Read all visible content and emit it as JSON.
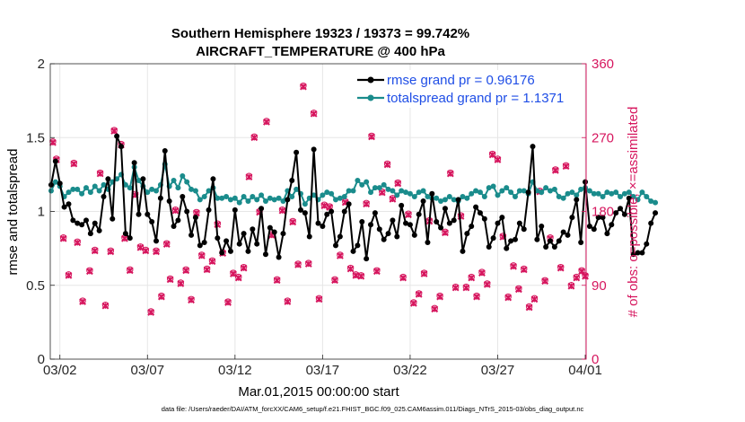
{
  "chart_data": {
    "type": "line",
    "title_line1": "Southern Hemisphere 19323 / 19373 = 99.742%",
    "title_line2": "AIRCRAFT_TEMPERATURE @ 400 hPa",
    "xlabel": "Mar.01,2015 00:00:00 start",
    "ylabel_left": "rmse and totalspread",
    "ylabel_right": "# of obs: o=possible; ×=assimilated",
    "x_tick_labels": [
      "03/02",
      "03/07",
      "03/12",
      "03/17",
      "03/22",
      "03/27",
      "04/01"
    ],
    "x_tick_days": [
      1,
      6,
      11,
      16,
      21,
      26,
      31
    ],
    "xlim_days": [
      0.45,
      31.05
    ],
    "ylim_left": [
      0,
      2
    ],
    "y_ticks_left": [
      "0",
      "0.5",
      "1",
      "1.5",
      "2"
    ],
    "y_tick_values_left": [
      0,
      0.5,
      1,
      1.5,
      2
    ],
    "ylim_right": [
      0,
      360
    ],
    "y_ticks_right": [
      "0",
      "90",
      "180",
      "270",
      "360"
    ],
    "y_tick_values_right": [
      0,
      90,
      180,
      270,
      360
    ],
    "legend": [
      {
        "label": "rmse grand pr = 0.96176",
        "color": "#000000"
      },
      {
        "label": "totalspread grand pr = 1.1371",
        "color": "#1a8c8c"
      }
    ],
    "series": [
      {
        "name": "rmse",
        "axis": "left",
        "color": "#000000",
        "values": [
          1.18,
          1.34,
          1.19,
          1.03,
          1.05,
          0.94,
          0.92,
          0.91,
          0.94,
          0.85,
          0.92,
          0.87,
          1.1,
          1.22,
          0.95,
          1.51,
          1.44,
          0.85,
          0.82,
          1.33,
          0.98,
          1.22,
          0.98,
          0.93,
          0.8,
          1.09,
          1.41,
          1.07,
          0.9,
          0.94,
          1.1,
          1.0,
          0.84,
          0.96,
          0.77,
          0.79,
          1.01,
          1.22,
          0.82,
          0.72,
          0.8,
          0.73,
          1.01,
          0.78,
          0.85,
          0.73,
          0.88,
          0.78,
          1.02,
          0.71,
          0.89,
          0.86,
          0.69,
          0.85,
          1.08,
          1.21,
          1.4,
          1.01,
          0.99,
          0.83,
          1.42,
          0.92,
          0.9,
          0.98,
          1.0,
          0.77,
          0.83,
          1.0,
          1.05,
          0.73,
          0.77,
          0.93,
          0.68,
          0.91,
          0.99,
          0.88,
          0.81,
          0.85,
          0.94,
          0.83,
          1.04,
          0.92,
          0.91,
          0.84,
          0.98,
          1.07,
          0.79,
          1.12,
          0.93,
          0.89,
          1.02,
          0.92,
          0.94,
          1.08,
          0.73,
          0.85,
          0.9,
          1.03,
          0.99,
          0.95,
          0.76,
          0.82,
          0.92,
          0.96,
          0.75,
          0.8,
          0.81,
          0.92,
          0.88,
          1.13,
          1.44,
          0.81,
          0.9,
          0.76,
          0.8,
          0.76,
          0.8,
          0.86,
          0.84,
          0.96,
          1.08,
          0.79,
          1.2,
          0.9,
          0.88,
          0.96,
          0.96,
          0.85,
          0.91,
          0.99,
          1.02,
          0.98,
          1.09,
          0.71,
          0.72,
          0.72,
          0.78,
          0.92,
          0.99
        ],
        "x_start_day": 0.5,
        "x_step_days": 0.25
      },
      {
        "name": "totalspread",
        "axis": "left",
        "color": "#1a8c8c",
        "values": [
          1.14,
          1.2,
          1.17,
          1.1,
          1.13,
          1.15,
          1.15,
          1.12,
          1.16,
          1.13,
          1.17,
          1.14,
          1.18,
          1.15,
          1.2,
          1.22,
          1.25,
          1.18,
          1.16,
          1.3,
          1.21,
          1.17,
          1.13,
          1.15,
          1.14,
          1.18,
          1.32,
          1.17,
          1.21,
          1.16,
          1.24,
          1.2,
          1.15,
          1.14,
          1.08,
          1.1,
          1.14,
          1.16,
          1.09,
          1.09,
          1.1,
          1.08,
          1.09,
          1.06,
          1.1,
          1.07,
          1.1,
          1.08,
          1.11,
          1.07,
          1.09,
          1.08,
          1.09,
          1.07,
          1.14,
          1.1,
          1.15,
          1.12,
          1.05,
          1.09,
          1.11,
          1.08,
          1.11,
          1.13,
          1.12,
          1.08,
          1.09,
          1.1,
          1.14,
          1.14,
          1.21,
          1.18,
          1.2,
          1.13,
          1.16,
          1.16,
          1.18,
          1.15,
          1.14,
          1.11,
          1.14,
          1.13,
          1.12,
          1.1,
          1.13,
          1.14,
          1.1,
          1.09,
          1.09,
          1.07,
          1.08,
          1.1,
          1.08,
          1.07,
          1.1,
          1.09,
          1.12,
          1.14,
          1.13,
          1.1,
          1.16,
          1.17,
          1.11,
          1.14,
          1.16,
          1.13,
          1.1,
          1.14,
          1.14,
          1.12,
          1.2,
          1.14,
          1.13,
          1.16,
          1.14,
          1.15,
          1.1,
          1.09,
          1.12,
          1.13,
          1.11,
          1.15,
          1.16,
          1.14,
          1.12,
          1.12,
          1.1,
          1.13,
          1.12,
          1.13,
          1.1,
          1.12,
          1.13,
          1.1,
          1.08,
          1.13,
          1.1,
          1.07,
          1.06
        ],
        "x_start_day": 0.5,
        "x_step_days": 0.25
      },
      {
        "name": "obs_possible",
        "axis": "right",
        "color": "#d6165e",
        "marker": "o",
        "points": [
          [
            0.6,
            265
          ],
          [
            0.8,
            244
          ],
          [
            1.2,
            148
          ],
          [
            1.5,
            103
          ],
          [
            1.8,
            239
          ],
          [
            2.0,
            143
          ],
          [
            2.3,
            71
          ],
          [
            2.7,
            108
          ],
          [
            3.0,
            133
          ],
          [
            3.3,
            227
          ],
          [
            3.6,
            66
          ],
          [
            3.9,
            132
          ],
          [
            4.1,
            279
          ],
          [
            4.5,
            262
          ],
          [
            4.7,
            148
          ],
          [
            5.0,
            109
          ],
          [
            5.3,
            201
          ],
          [
            5.6,
            137
          ],
          [
            5.9,
            133
          ],
          [
            6.2,
            58
          ],
          [
            6.5,
            132
          ],
          [
            6.8,
            77
          ],
          [
            7.1,
            141
          ],
          [
            7.3,
            98
          ],
          [
            7.6,
            182
          ],
          [
            7.9,
            93
          ],
          [
            8.2,
            109
          ],
          [
            8.5,
            73
          ],
          [
            8.8,
            179
          ],
          [
            9.1,
            127
          ],
          [
            9.4,
            110
          ],
          [
            9.7,
            120
          ],
          [
            10.0,
            165
          ],
          [
            10.3,
            130
          ],
          [
            10.6,
            70
          ],
          [
            10.9,
            105
          ],
          [
            11.2,
            100
          ],
          [
            11.5,
            112
          ],
          [
            11.8,
            223
          ],
          [
            12.1,
            271
          ],
          [
            12.4,
            180
          ],
          [
            12.8,
            290
          ],
          [
            13.1,
            152
          ],
          [
            13.4,
            97
          ],
          [
            13.7,
            182
          ],
          [
            14.0,
            71
          ],
          [
            14.3,
            168
          ],
          [
            14.6,
            116
          ],
          [
            14.9,
            333
          ],
          [
            15.2,
            117
          ],
          [
            15.5,
            300
          ],
          [
            15.8,
            74
          ],
          [
            16.1,
            188
          ],
          [
            16.4,
            186
          ],
          [
            16.7,
            97
          ],
          [
            17.0,
            127
          ],
          [
            17.3,
            192
          ],
          [
            17.6,
            111
          ],
          [
            17.9,
            103
          ],
          [
            18.2,
            102
          ],
          [
            18.5,
            190
          ],
          [
            18.8,
            272
          ],
          [
            19.1,
            108
          ],
          [
            19.4,
            204
          ],
          [
            19.7,
            238
          ],
          [
            20.0,
            196
          ],
          [
            20.3,
            215
          ],
          [
            20.6,
            100
          ],
          [
            20.9,
            177
          ],
          [
            21.2,
            69
          ],
          [
            21.5,
            80
          ],
          [
            21.8,
            105
          ],
          [
            22.1,
            169
          ],
          [
            22.4,
            62
          ],
          [
            22.7,
            77
          ],
          [
            23.0,
            155
          ],
          [
            23.3,
            227
          ],
          [
            23.6,
            88
          ],
          [
            23.9,
            175
          ],
          [
            24.2,
            88
          ],
          [
            24.5,
            100
          ],
          [
            24.8,
            77
          ],
          [
            25.1,
            106
          ],
          [
            25.4,
            92
          ],
          [
            25.7,
            250
          ],
          [
            26.0,
            244
          ],
          [
            26.3,
            150
          ],
          [
            26.6,
            76
          ],
          [
            26.9,
            114
          ],
          [
            27.2,
            86
          ],
          [
            27.5,
            110
          ],
          [
            27.8,
            64
          ],
          [
            28.1,
            74
          ],
          [
            28.4,
            205
          ],
          [
            28.7,
            96
          ],
          [
            29.0,
            148
          ],
          [
            29.3,
            231
          ],
          [
            29.6,
            112
          ],
          [
            29.9,
            236
          ],
          [
            30.2,
            90
          ],
          [
            30.5,
            100
          ],
          [
            30.8,
            108
          ],
          [
            31.0,
            102
          ]
        ]
      },
      {
        "name": "obs_assimilated",
        "axis": "right",
        "color": "#d6165e",
        "marker": "x",
        "points": [
          [
            0.6,
            264
          ],
          [
            0.8,
            243
          ],
          [
            1.2,
            147
          ],
          [
            1.5,
            102
          ],
          [
            1.8,
            238
          ],
          [
            2.0,
            142
          ],
          [
            2.3,
            70
          ],
          [
            2.7,
            107
          ],
          [
            3.0,
            132
          ],
          [
            3.3,
            226
          ],
          [
            3.6,
            65
          ],
          [
            3.9,
            131
          ],
          [
            4.1,
            278
          ],
          [
            4.5,
            261
          ],
          [
            4.7,
            147
          ],
          [
            5.0,
            108
          ],
          [
            5.3,
            200
          ],
          [
            5.6,
            136
          ],
          [
            5.9,
            132
          ],
          [
            6.2,
            57
          ],
          [
            6.5,
            131
          ],
          [
            6.8,
            76
          ],
          [
            7.1,
            140
          ],
          [
            7.3,
            97
          ],
          [
            7.6,
            181
          ],
          [
            7.9,
            92
          ],
          [
            8.2,
            108
          ],
          [
            8.5,
            72
          ],
          [
            8.8,
            178
          ],
          [
            9.1,
            126
          ],
          [
            9.4,
            109
          ],
          [
            9.7,
            119
          ],
          [
            10.0,
            164
          ],
          [
            10.3,
            129
          ],
          [
            10.6,
            69
          ],
          [
            10.9,
            104
          ],
          [
            11.2,
            99
          ],
          [
            11.5,
            111
          ],
          [
            11.8,
            222
          ],
          [
            12.1,
            270
          ],
          [
            12.4,
            179
          ],
          [
            12.8,
            289
          ],
          [
            13.1,
            151
          ],
          [
            13.4,
            96
          ],
          [
            13.7,
            181
          ],
          [
            14.0,
            70
          ],
          [
            14.3,
            167
          ],
          [
            14.6,
            115
          ],
          [
            14.9,
            332
          ],
          [
            15.2,
            116
          ],
          [
            15.5,
            299
          ],
          [
            15.8,
            73
          ],
          [
            16.1,
            187
          ],
          [
            16.4,
            185
          ],
          [
            16.7,
            96
          ],
          [
            17.0,
            126
          ],
          [
            17.3,
            191
          ],
          [
            17.6,
            110
          ],
          [
            17.9,
            102
          ],
          [
            18.2,
            101
          ],
          [
            18.5,
            189
          ],
          [
            18.8,
            271
          ],
          [
            19.1,
            107
          ],
          [
            19.4,
            203
          ],
          [
            19.7,
            237
          ],
          [
            20.0,
            195
          ],
          [
            20.3,
            214
          ],
          [
            20.6,
            99
          ],
          [
            20.9,
            176
          ],
          [
            21.2,
            68
          ],
          [
            21.5,
            79
          ],
          [
            21.8,
            104
          ],
          [
            22.1,
            168
          ],
          [
            22.4,
            61
          ],
          [
            22.7,
            76
          ],
          [
            23.0,
            154
          ],
          [
            23.3,
            226
          ],
          [
            23.6,
            87
          ],
          [
            23.9,
            174
          ],
          [
            24.2,
            87
          ],
          [
            24.5,
            99
          ],
          [
            24.8,
            76
          ],
          [
            25.1,
            105
          ],
          [
            25.4,
            91
          ],
          [
            25.7,
            249
          ],
          [
            26.0,
            243
          ],
          [
            26.3,
            149
          ],
          [
            26.6,
            75
          ],
          [
            26.9,
            113
          ],
          [
            27.2,
            85
          ],
          [
            27.5,
            109
          ],
          [
            27.8,
            63
          ],
          [
            28.1,
            73
          ],
          [
            28.4,
            204
          ],
          [
            28.7,
            95
          ],
          [
            29.0,
            147
          ],
          [
            29.3,
            230
          ],
          [
            29.6,
            111
          ],
          [
            29.9,
            235
          ],
          [
            30.2,
            89
          ],
          [
            30.5,
            99
          ],
          [
            30.8,
            107
          ],
          [
            31.0,
            101
          ]
        ]
      }
    ]
  },
  "footnote": "data file: /Users/raeder/DAI/ATM_forcXX/CAM6_setup/f.e21.FHIST_BGC.f09_025.CAM6assim.011/Diags_NTrS_2015-03/obs_diag_output.nc",
  "colors": {
    "rmse": "#000000",
    "spread": "#1a8c8c",
    "obs": "#d6165e",
    "axis": "#262626",
    "grid": "#e6e6e6",
    "legend_text": "#1f4ee6"
  }
}
